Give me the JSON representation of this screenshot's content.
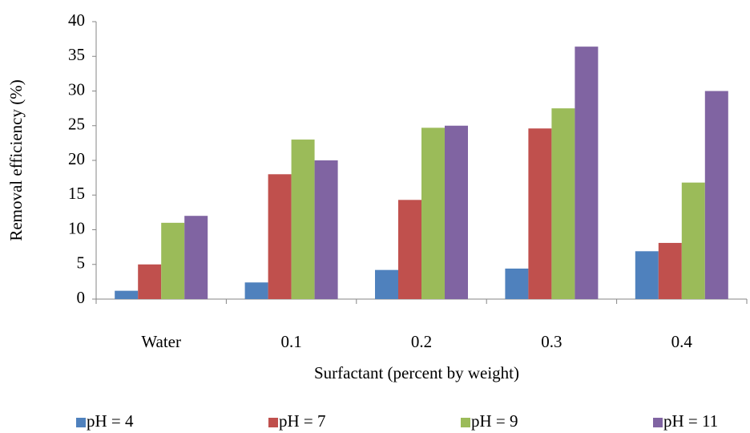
{
  "chart_data": {
    "type": "bar",
    "x_label": "Surfactant (percent by weight)",
    "y_label": "Removal efficiency (%)",
    "categories": [
      "Water",
      "0.1",
      "0.2",
      "0.3",
      "0.4"
    ],
    "series": [
      {
        "name": "pH = 4",
        "color": "#4f81bd",
        "values": [
          1.2,
          2.4,
          4.2,
          4.4,
          6.9
        ]
      },
      {
        "name": "pH = 7",
        "color": "#c0504d",
        "values": [
          5.0,
          18.0,
          14.3,
          24.6,
          8.1
        ]
      },
      {
        "name": "pH = 9",
        "color": "#9bbb59",
        "values": [
          11.0,
          23.0,
          24.7,
          27.5,
          16.8
        ]
      },
      {
        "name": "pH = 11",
        "color": "#8064a2",
        "values": [
          12.0,
          20.0,
          25.0,
          36.4,
          30.0
        ]
      }
    ],
    "ylim": [
      0,
      40
    ],
    "yticks": [
      0,
      5,
      10,
      15,
      20,
      25,
      30,
      35,
      40
    ],
    "grid": false,
    "legend": "bottom"
  }
}
